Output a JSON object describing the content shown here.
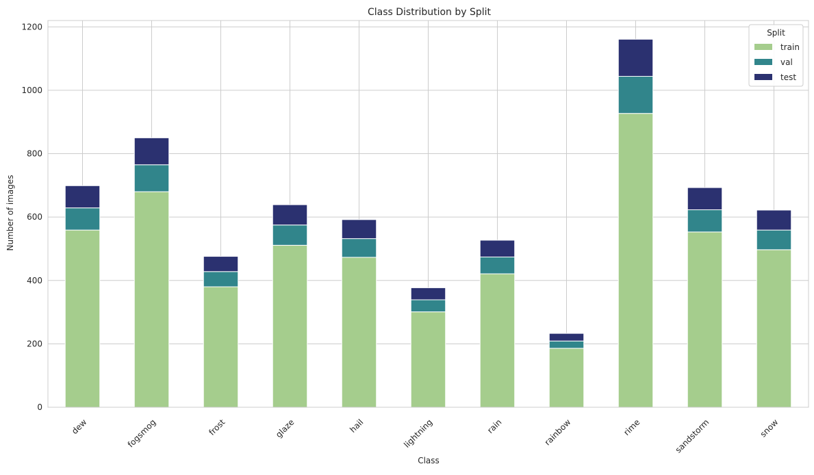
{
  "chart_data": {
    "type": "bar",
    "stacked": true,
    "title": "Class Distribution by Split",
    "xlabel": "Class",
    "ylabel": "Number of images",
    "ylim": [
      0,
      1220
    ],
    "yticks": [
      0,
      200,
      400,
      600,
      800,
      1000,
      1200
    ],
    "grid": true,
    "legend_title": "Split",
    "legend_position": "top-right",
    "categories": [
      "dew",
      "fogsmog",
      "frost",
      "glaze",
      "hail",
      "lightning",
      "rain",
      "rainbow",
      "rime",
      "sandstorm",
      "snow"
    ],
    "series": [
      {
        "name": "train",
        "color": "#a5cd8d",
        "values": [
          559,
          680,
          380,
          511,
          473,
          301,
          421,
          186,
          927,
          553,
          497
        ]
      },
      {
        "name": "val",
        "color": "#31858b",
        "values": [
          70,
          85,
          48,
          64,
          59,
          38,
          53,
          23,
          117,
          70,
          62
        ]
      },
      {
        "name": "test",
        "color": "#2b3170",
        "values": [
          70,
          85,
          48,
          64,
          60,
          38,
          53,
          24,
          117,
          70,
          63
        ]
      }
    ]
  }
}
